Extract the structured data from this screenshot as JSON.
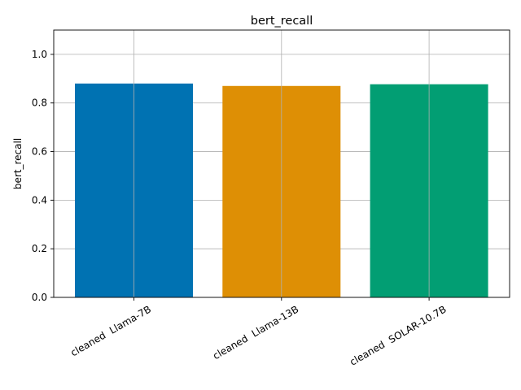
{
  "chart_data": {
    "type": "bar",
    "title": "bert_recall",
    "xlabel": "",
    "ylabel": "bert_recall",
    "categories": [
      "cleaned  Llama-7B",
      "cleaned  Llama-13B",
      "cleaned  SOLAR-10.7B"
    ],
    "values": [
      0.88,
      0.87,
      0.877
    ],
    "colors": [
      "#0072b2",
      "#de8f05",
      "#029e73"
    ],
    "ylim": [
      0,
      1.1
    ],
    "yticks": [
      0.0,
      0.2,
      0.4,
      0.6,
      0.8,
      1.0
    ],
    "ytick_labels": [
      "0.0",
      "0.2",
      "0.4",
      "0.6",
      "0.8",
      "1.0"
    ],
    "grid": true,
    "xtick_rotation": "30 degrees"
  }
}
